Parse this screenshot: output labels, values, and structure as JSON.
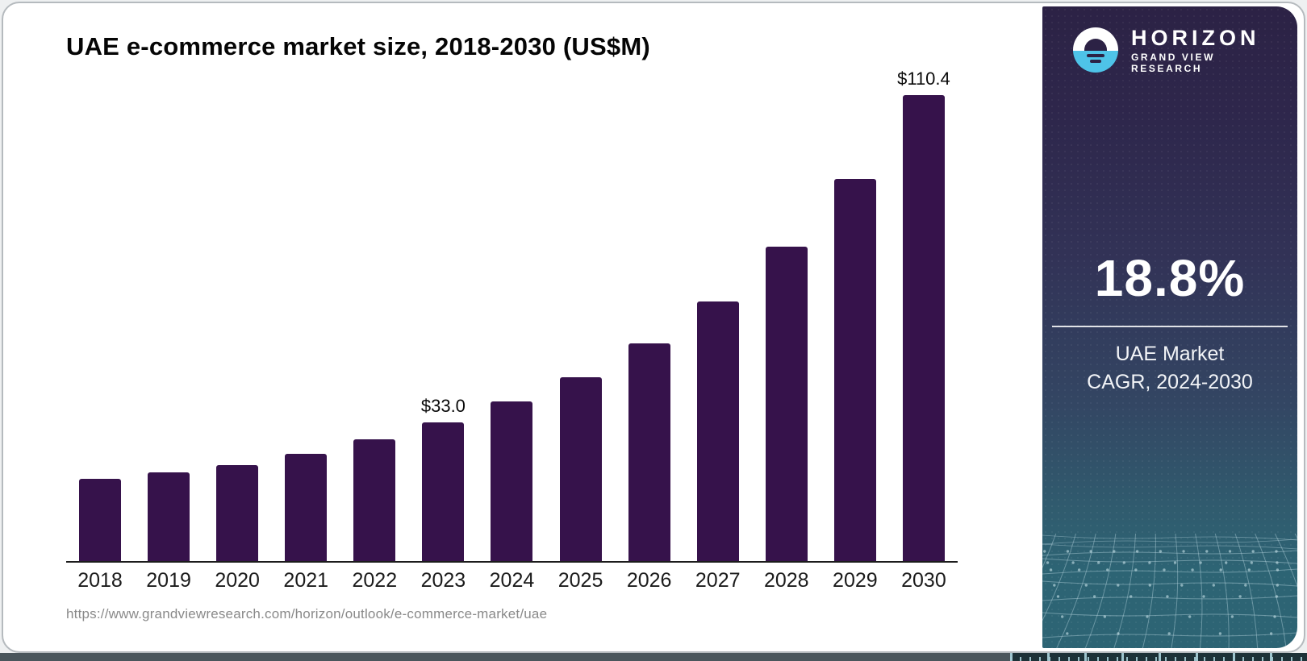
{
  "chart_data": {
    "type": "bar",
    "title": "UAE e-commerce market size, 2018-2030 (US$M)",
    "categories": [
      "2018",
      "2019",
      "2020",
      "2021",
      "2022",
      "2023",
      "2024",
      "2025",
      "2026",
      "2027",
      "2028",
      "2029",
      "2030"
    ],
    "values": [
      19.6,
      21.1,
      22.8,
      25.5,
      28.9,
      33.0,
      37.9,
      43.7,
      51.7,
      61.6,
      74.5,
      90.5,
      110.4
    ],
    "data_labels": {
      "2023": "$33.0",
      "2030": "$110.4"
    },
    "xlabel": "",
    "ylabel": "",
    "ylim": [
      0,
      110.4
    ],
    "grid": false,
    "legend": null,
    "bar_color": "#36124b"
  },
  "chart": {
    "source_url": "https://www.grandviewresearch.com/horizon/outlook/e-commerce-market/uae"
  },
  "sidebar": {
    "brand": {
      "name": "HORIZON",
      "subtitle": "GRAND VIEW RESEARCH"
    },
    "stat": {
      "value": "18.8%",
      "caption_line1": "UAE Market",
      "caption_line2": "CAGR, 2024-2030"
    },
    "colors": {
      "gradient_top": "#2c2245",
      "gradient_bottom": "#2d6474",
      "logo_blue": "#4ec3e8",
      "text": "#ffffff"
    }
  }
}
